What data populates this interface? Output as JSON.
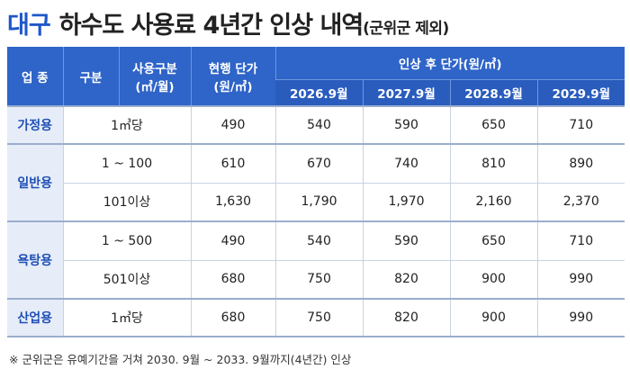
{
  "title": {
    "accent": "대구",
    "main": "하수도 사용료 4년간 인상 내역",
    "sub": "(군위군 제외)"
  },
  "table": {
    "headers": {
      "category": "업 종",
      "type": "구분",
      "usage": "사용구분\n(㎥/월)",
      "current": "현행 단가\n(원/㎥)",
      "after": "인상 후 단가(원/㎥)",
      "years": [
        "2026.9월",
        "2027.9월",
        "2028.9월",
        "2029.9월"
      ]
    },
    "rows": [
      {
        "category": "가정용",
        "usage": "1㎥당",
        "current": "490",
        "values": [
          "540",
          "590",
          "650",
          "710"
        ]
      },
      {
        "category": "일반용",
        "usage": "1 ~ 100",
        "current": "610",
        "values": [
          "670",
          "740",
          "810",
          "890"
        ]
      },
      {
        "category": "",
        "usage": "101이상",
        "current": "1,630",
        "values": [
          "1,790",
          "1,970",
          "2,160",
          "2,370"
        ]
      },
      {
        "category": "욕탕용",
        "usage": "1 ~ 500",
        "current": "490",
        "values": [
          "540",
          "590",
          "650",
          "710"
        ]
      },
      {
        "category": "",
        "usage": "501이상",
        "current": "680",
        "values": [
          "750",
          "820",
          "900",
          "990"
        ]
      },
      {
        "category": "산업용",
        "usage": "1㎥당",
        "current": "680",
        "values": [
          "750",
          "820",
          "900",
          "990"
        ]
      }
    ]
  },
  "note": "※ 군위군은 유예기간을 거쳐 2030. 9월 ~ 2033. 9월까지(4년간) 인상"
}
